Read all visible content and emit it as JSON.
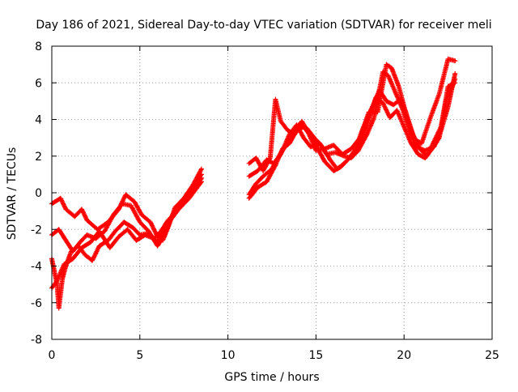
{
  "chart_data": {
    "type": "scatter",
    "title": "Day 186 of 2021, Sidereal Day-to-day VTEC variation (SDTVAR) for receiver meli",
    "xlabel": "GPS time / hours",
    "ylabel": "SDTVAR / TECUs",
    "xlim": [
      0,
      25
    ],
    "ylim": [
      -8,
      8
    ],
    "xticks": [
      0,
      5,
      10,
      15,
      20,
      25
    ],
    "yticks": [
      -8,
      -6,
      -4,
      -2,
      0,
      2,
      4,
      6,
      8
    ],
    "grid": true,
    "marker": "+",
    "color": "#ff0000",
    "series": [
      {
        "points": [
          [
            0.0,
            -0.6
          ],
          [
            0.5,
            -0.3
          ],
          [
            0.8,
            -0.9
          ],
          [
            1.3,
            -1.3
          ],
          [
            1.7,
            -0.9
          ],
          [
            2.0,
            -1.5
          ],
          [
            2.6,
            -2.0
          ],
          [
            3.2,
            -1.6
          ],
          [
            3.8,
            -0.9
          ],
          [
            4.2,
            -0.1
          ],
          [
            4.7,
            -0.5
          ],
          [
            5.1,
            -1.2
          ],
          [
            5.6,
            -1.6
          ],
          [
            6.0,
            -2.4
          ],
          [
            6.3,
            -2.6
          ],
          [
            6.6,
            -1.9
          ],
          [
            7.0,
            -0.8
          ],
          [
            7.5,
            -0.3
          ],
          [
            8.0,
            0.4
          ],
          [
            8.5,
            1.3
          ]
        ]
      },
      {
        "points": [
          [
            0.0,
            -2.3
          ],
          [
            0.4,
            -2.0
          ],
          [
            0.8,
            -2.6
          ],
          [
            1.2,
            -3.2
          ],
          [
            1.6,
            -2.7
          ],
          [
            2.0,
            -2.3
          ],
          [
            2.5,
            -2.5
          ],
          [
            3.0,
            -2.1
          ],
          [
            3.5,
            -1.2
          ],
          [
            4.0,
            -0.6
          ],
          [
            4.5,
            -0.7
          ],
          [
            5.0,
            -1.6
          ],
          [
            5.5,
            -2.1
          ],
          [
            6.0,
            -2.9
          ],
          [
            6.4,
            -2.3
          ],
          [
            6.8,
            -1.3
          ],
          [
            7.3,
            -0.7
          ],
          [
            7.8,
            0.0
          ],
          [
            8.2,
            0.6
          ],
          [
            8.5,
            1.0
          ]
        ]
      },
      {
        "points": [
          [
            0.0,
            -3.6
          ],
          [
            0.3,
            -5.0
          ],
          [
            0.4,
            -6.3
          ],
          [
            0.6,
            -4.7
          ],
          [
            0.8,
            -4.0
          ],
          [
            1.1,
            -3.2
          ],
          [
            1.5,
            -2.9
          ],
          [
            1.9,
            -3.4
          ],
          [
            2.3,
            -3.7
          ],
          [
            2.7,
            -2.9
          ],
          [
            3.2,
            -2.6
          ],
          [
            3.6,
            -2.1
          ],
          [
            4.1,
            -1.6
          ],
          [
            4.6,
            -1.9
          ],
          [
            5.0,
            -2.3
          ],
          [
            5.5,
            -2.2
          ],
          [
            6.0,
            -2.7
          ],
          [
            6.5,
            -1.8
          ],
          [
            7.2,
            -0.9
          ],
          [
            7.8,
            -0.3
          ],
          [
            8.5,
            0.6
          ]
        ]
      },
      {
        "points": [
          [
            0.0,
            -5.2
          ],
          [
            0.3,
            -4.8
          ],
          [
            0.7,
            -3.9
          ],
          [
            1.2,
            -3.6
          ],
          [
            1.7,
            -3.0
          ],
          [
            2.2,
            -2.7
          ],
          [
            2.7,
            -2.1
          ],
          [
            3.3,
            -3.0
          ],
          [
            3.8,
            -2.4
          ],
          [
            4.3,
            -2.0
          ],
          [
            4.8,
            -2.6
          ],
          [
            5.3,
            -2.3
          ],
          [
            5.8,
            -2.5
          ],
          [
            6.2,
            -2.1
          ],
          [
            6.6,
            -1.5
          ],
          [
            7.1,
            -1.0
          ],
          [
            7.6,
            -0.4
          ],
          [
            8.1,
            0.2
          ],
          [
            8.5,
            0.8
          ]
        ]
      },
      {
        "points": [
          [
            11.2,
            1.6
          ],
          [
            11.6,
            1.9
          ],
          [
            12.0,
            1.2
          ],
          [
            12.4,
            1.9
          ],
          [
            12.7,
            5.1
          ],
          [
            13.0,
            3.9
          ],
          [
            13.4,
            3.4
          ],
          [
            13.8,
            3.2
          ],
          [
            14.2,
            3.9
          ],
          [
            14.6,
            3.2
          ],
          [
            15.0,
            2.3
          ],
          [
            15.5,
            2.4
          ],
          [
            16.0,
            2.6
          ],
          [
            16.5,
            2.1
          ],
          [
            17.0,
            2.4
          ],
          [
            17.5,
            3.0
          ],
          [
            18.0,
            4.4
          ],
          [
            18.5,
            4.4
          ],
          [
            19.0,
            7.0
          ],
          [
            19.3,
            6.8
          ],
          [
            19.7,
            5.8
          ],
          [
            20.2,
            4.0
          ],
          [
            20.6,
            2.9
          ],
          [
            21.0,
            2.7
          ],
          [
            21.5,
            4.1
          ],
          [
            22.0,
            5.4
          ],
          [
            22.5,
            7.3
          ],
          [
            22.9,
            7.2
          ]
        ]
      },
      {
        "points": [
          [
            11.2,
            0.9
          ],
          [
            11.7,
            1.2
          ],
          [
            12.2,
            1.8
          ],
          [
            12.6,
            1.6
          ],
          [
            13.0,
            2.1
          ],
          [
            13.5,
            3.2
          ],
          [
            13.9,
            3.7
          ],
          [
            14.3,
            3.0
          ],
          [
            14.7,
            2.5
          ],
          [
            15.2,
            2.7
          ],
          [
            15.6,
            2.1
          ],
          [
            16.1,
            2.2
          ],
          [
            16.6,
            2.0
          ],
          [
            17.0,
            1.9
          ],
          [
            17.4,
            2.3
          ],
          [
            17.9,
            3.2
          ],
          [
            18.3,
            4.1
          ],
          [
            18.8,
            6.6
          ],
          [
            19.1,
            6.4
          ],
          [
            19.5,
            5.5
          ],
          [
            19.9,
            4.6
          ],
          [
            20.3,
            3.4
          ],
          [
            20.7,
            2.5
          ],
          [
            21.2,
            2.3
          ],
          [
            21.7,
            2.5
          ],
          [
            22.1,
            3.4
          ],
          [
            22.5,
            4.7
          ],
          [
            22.9,
            6.5
          ]
        ]
      },
      {
        "points": [
          [
            11.2,
            -0.1
          ],
          [
            11.6,
            0.5
          ],
          [
            12.0,
            0.9
          ],
          [
            12.5,
            1.3
          ],
          [
            12.9,
            2.0
          ],
          [
            13.3,
            2.6
          ],
          [
            13.7,
            3.1
          ],
          [
            14.1,
            3.8
          ],
          [
            14.5,
            3.5
          ],
          [
            14.9,
            3.0
          ],
          [
            15.3,
            2.6
          ],
          [
            15.8,
            1.8
          ],
          [
            16.2,
            1.3
          ],
          [
            16.6,
            1.6
          ],
          [
            17.0,
            2.0
          ],
          [
            17.5,
            2.7
          ],
          [
            17.9,
            3.7
          ],
          [
            18.4,
            5.2
          ],
          [
            18.8,
            4.9
          ],
          [
            19.2,
            4.1
          ],
          [
            19.6,
            4.5
          ],
          [
            20.0,
            3.6
          ],
          [
            20.4,
            2.7
          ],
          [
            20.8,
            2.1
          ],
          [
            21.2,
            1.9
          ],
          [
            21.6,
            2.4
          ],
          [
            22.0,
            3.0
          ],
          [
            22.4,
            5.1
          ],
          [
            22.9,
            6.2
          ]
        ]
      },
      {
        "points": [
          [
            11.2,
            -0.3
          ],
          [
            11.7,
            0.3
          ],
          [
            12.2,
            0.6
          ],
          [
            12.7,
            1.5
          ],
          [
            13.1,
            2.4
          ],
          [
            13.5,
            2.7
          ],
          [
            13.9,
            3.4
          ],
          [
            14.3,
            3.6
          ],
          [
            14.7,
            3.1
          ],
          [
            15.1,
            2.4
          ],
          [
            15.5,
            1.7
          ],
          [
            16.0,
            1.2
          ],
          [
            16.4,
            1.4
          ],
          [
            16.8,
            1.8
          ],
          [
            17.2,
            2.3
          ],
          [
            17.7,
            3.6
          ],
          [
            18.2,
            4.7
          ],
          [
            18.6,
            5.6
          ],
          [
            19.0,
            5.0
          ],
          [
            19.4,
            4.8
          ],
          [
            19.8,
            5.1
          ],
          [
            20.1,
            4.4
          ],
          [
            20.5,
            3.2
          ],
          [
            20.9,
            2.4
          ],
          [
            21.3,
            2.0
          ],
          [
            21.7,
            2.8
          ],
          [
            22.1,
            3.6
          ],
          [
            22.5,
            5.8
          ],
          [
            22.9,
            6.0
          ]
        ]
      }
    ]
  }
}
